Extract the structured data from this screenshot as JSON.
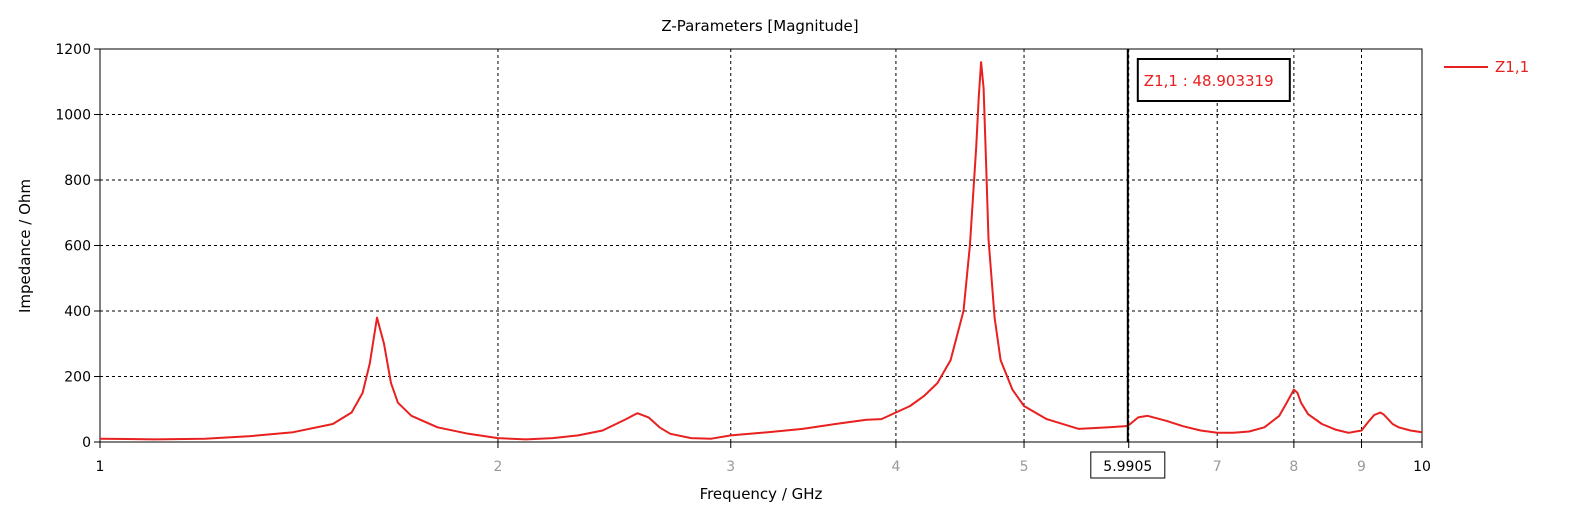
{
  "chart_data": {
    "type": "line",
    "title": "Z-Parameters [Magnitude]",
    "xlabel": "Frequency / GHz",
    "ylabel": "Impedance / Ohm",
    "x_scale": "log",
    "xlim": [
      1,
      10
    ],
    "ylim": [
      0,
      1200
    ],
    "y_ticks": [
      0,
      200,
      400,
      600,
      800,
      1000,
      1200
    ],
    "x_ticks": [
      {
        "value": 1,
        "label": "1",
        "major": true
      },
      {
        "value": 2,
        "label": "2",
        "major": false
      },
      {
        "value": 3,
        "label": "3",
        "major": false
      },
      {
        "value": 4,
        "label": "4",
        "major": false
      },
      {
        "value": 5,
        "label": "5",
        "major": false
      },
      {
        "value": 6,
        "label": "",
        "major": false
      },
      {
        "value": 7,
        "label": "7",
        "major": false
      },
      {
        "value": 8,
        "label": "8",
        "major": false
      },
      {
        "value": 9,
        "label": "9",
        "major": false
      },
      {
        "value": 10,
        "label": "10",
        "major": true
      }
    ],
    "grid": true,
    "legend_position": "right",
    "series": [
      {
        "name": "Z1,1",
        "color": "#e8201f",
        "x": [
          1.0,
          1.1,
          1.2,
          1.3,
          1.4,
          1.5,
          1.55,
          1.58,
          1.6,
          1.62,
          1.64,
          1.66,
          1.68,
          1.72,
          1.8,
          1.9,
          2.0,
          2.1,
          2.2,
          2.3,
          2.4,
          2.5,
          2.55,
          2.6,
          2.65,
          2.7,
          2.8,
          2.9,
          3.0,
          3.2,
          3.4,
          3.6,
          3.8,
          3.9,
          4.0,
          4.1,
          4.2,
          4.3,
          4.4,
          4.5,
          4.55,
          4.6,
          4.62,
          4.64,
          4.66,
          4.68,
          4.7,
          4.75,
          4.8,
          4.9,
          5.0,
          5.2,
          5.5,
          5.8,
          5.99,
          6.1,
          6.2,
          6.4,
          6.6,
          6.8,
          7.0,
          7.2,
          7.4,
          7.6,
          7.8,
          7.9,
          8.0,
          8.05,
          8.1,
          8.2,
          8.4,
          8.6,
          8.8,
          9.0,
          9.1,
          9.2,
          9.3,
          9.35,
          9.4,
          9.5,
          9.6,
          9.8,
          10.0
        ],
        "values": [
          10,
          8,
          10,
          18,
          30,
          55,
          90,
          150,
          240,
          380,
          300,
          180,
          120,
          80,
          45,
          25,
          12,
          8,
          12,
          20,
          35,
          70,
          88,
          75,
          45,
          25,
          12,
          10,
          20,
          30,
          40,
          55,
          68,
          70,
          90,
          110,
          140,
          180,
          250,
          400,
          600,
          900,
          1050,
          1160,
          1080,
          850,
          620,
          380,
          250,
          160,
          110,
          70,
          40,
          45,
          48.9,
          75,
          80,
          65,
          48,
          35,
          28,
          28,
          32,
          45,
          80,
          120,
          160,
          150,
          120,
          85,
          55,
          38,
          28,
          35,
          60,
          82,
          90,
          85,
          75,
          55,
          45,
          35,
          30
        ]
      }
    ],
    "marker": {
      "x": 5.9905,
      "x_label": "5.9905",
      "label": "Z1,1 : 48.903319"
    }
  }
}
